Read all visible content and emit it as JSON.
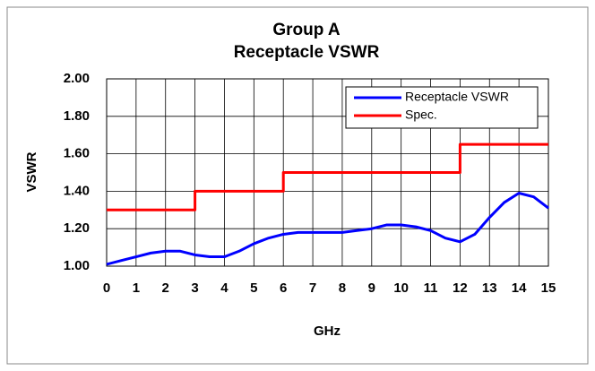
{
  "chart_data": {
    "type": "line",
    "title": "Group A",
    "subtitle": "Receptacle VSWR",
    "xlabel": "GHz",
    "ylabel": "VSWR",
    "xlim": [
      0,
      15
    ],
    "xticks": [
      0,
      1,
      2,
      3,
      4,
      5,
      6,
      7,
      8,
      9,
      10,
      11,
      12,
      13,
      14,
      15
    ],
    "ylim": [
      1,
      2
    ],
    "yticks": [
      {
        "value": 1,
        "label": "1.00"
      },
      {
        "value": 1.2,
        "label": "1.20"
      },
      {
        "value": 1.4,
        "label": "1.40"
      },
      {
        "value": 1.6,
        "label": "1.60"
      },
      {
        "value": 1.8,
        "label": "1.80"
      },
      {
        "value": 2,
        "label": "2.00"
      }
    ],
    "grid": true,
    "legend": "upper right",
    "series": [
      {
        "name": "Receptacle VSWR",
        "color": "#0000ff",
        "x": [
          0,
          0.5,
          1,
          1.5,
          2,
          2.5,
          3,
          3.5,
          4,
          4.5,
          5,
          5.5,
          6,
          6.5,
          7,
          7.5,
          8,
          8.5,
          9,
          9.5,
          10,
          10.5,
          11,
          11.5,
          12,
          12.5,
          13,
          13.5,
          14,
          14.5,
          15
        ],
        "values": [
          1.01,
          1.03,
          1.05,
          1.07,
          1.08,
          1.08,
          1.06,
          1.05,
          1.05,
          1.08,
          1.12,
          1.15,
          1.17,
          1.18,
          1.18,
          1.18,
          1.18,
          1.19,
          1.2,
          1.22,
          1.22,
          1.21,
          1.19,
          1.15,
          1.13,
          1.17,
          1.26,
          1.34,
          1.39,
          1.37,
          1.31
        ]
      },
      {
        "name": "Spec.",
        "color": "#ff0000",
        "x": [
          0,
          3,
          3,
          6,
          6,
          12,
          12,
          15
        ],
        "values": [
          1.3,
          1.3,
          1.4,
          1.4,
          1.5,
          1.5,
          1.65,
          1.65
        ]
      }
    ]
  }
}
